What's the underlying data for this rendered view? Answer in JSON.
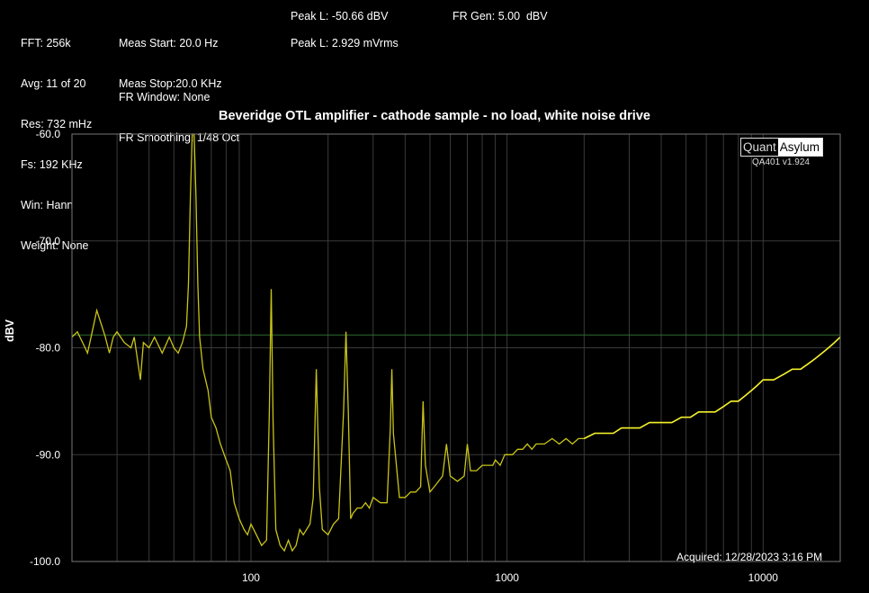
{
  "header": {
    "col1": [
      "FFT: 256k",
      "Avg: 11 of 20",
      "Res: 732 mHz",
      "Fs: 192 KHz",
      "Win: Hann",
      "Weight: None"
    ],
    "col2a": [
      "Meas Start: 20.0 Hz",
      "Meas Stop:20.0 KHz"
    ],
    "col2b": [
      "FR Window: None",
      "FR Smoothing: 1/48 Oct"
    ],
    "peak1": "Peak L: -50.66 dBV",
    "peak2": "Peak L: 2.929 mVrms",
    "frgen": "FR Gen: 5.00  dBV"
  },
  "logo": {
    "left": "Quant",
    "right": "Asylum",
    "version": "QA401 v1.924"
  },
  "acquired": "Acquired: 12/28/2023  3:16 PM",
  "chart_data": {
    "type": "line",
    "title": "Beveridge OTL amplifier - cathode sample - no load, white noise drive",
    "ylabel": "dBV",
    "xlabel": "",
    "x_scale": "log",
    "xlim": [
      20,
      20000
    ],
    "ylim": [
      -100,
      -60
    ],
    "yticks": [
      -60,
      -70,
      -80,
      -90,
      -100
    ],
    "ytick_labels": [
      "-60.0",
      "-70.0",
      "-80.0",
      "-90.0",
      "-100.0"
    ],
    "xticks": [
      100,
      1000,
      10000
    ],
    "xtick_labels": [
      "100",
      "1000",
      "10000"
    ],
    "grid": "on",
    "reference_line_y": -78.8,
    "colors": {
      "trace": "#c9c418",
      "trace_bright": "#f2ee2a",
      "grid": "#3a3a3a",
      "ref": "#2f6b2f"
    },
    "series": [
      {
        "x": [
          20,
          21,
          22,
          23,
          24,
          25,
          27,
          28,
          29,
          30,
          32,
          34,
          35,
          37,
          38,
          40,
          42,
          45,
          48,
          50,
          52,
          54,
          56,
          57,
          58,
          59,
          60,
          61,
          62,
          63,
          65,
          68,
          70,
          73,
          76,
          80,
          83,
          86,
          90,
          94,
          97,
          100,
          105,
          110,
          115,
          118,
          120,
          122,
          125,
          130,
          135,
          140,
          145,
          150,
          155,
          160,
          170,
          175,
          180,
          185,
          190,
          200,
          210,
          220,
          230,
          235,
          240,
          245,
          250,
          260,
          270,
          280,
          290,
          300,
          320,
          340,
          350,
          355,
          360,
          380,
          400,
          420,
          440,
          460,
          470,
          480,
          500,
          520,
          560,
          580,
          600,
          640,
          680,
          700,
          720,
          760,
          800,
          840,
          880,
          900,
          940,
          980,
          1000,
          1050,
          1100,
          1150,
          1200,
          1250,
          1300,
          1400,
          1500,
          1600,
          1700,
          1800,
          1900,
          2000,
          2200,
          2400,
          2600,
          2800,
          3000,
          3300,
          3600,
          4000,
          4400,
          4800,
          5200,
          5600,
          6000,
          6500,
          7000,
          7500,
          8000,
          8500,
          9000,
          9500,
          10000,
          11000,
          12000,
          13000,
          14000,
          15000,
          16000,
          17000,
          18000,
          19000,
          20000
        ],
        "y": [
          -79,
          -78.5,
          -79.5,
          -80.5,
          -78.5,
          -76.5,
          -79.0,
          -80.5,
          -79.0,
          -78.5,
          -79.5,
          -80.0,
          -79.0,
          -83.0,
          -79.5,
          -80.0,
          -79.0,
          -80.5,
          -79.0,
          -80.0,
          -80.5,
          -79.5,
          -78.0,
          -74.0,
          -66.0,
          -60.0,
          -60.0,
          -66.0,
          -74.0,
          -79.0,
          -82.0,
          -84.0,
          -86.5,
          -87.5,
          -89.0,
          -90.5,
          -91.5,
          -94.5,
          -96.0,
          -97.0,
          -97.5,
          -96.5,
          -97.5,
          -98.5,
          -98.0,
          -86.0,
          -74.5,
          -87.0,
          -97.0,
          -98.5,
          -99.0,
          -98.0,
          -99.0,
          -98.5,
          -97.0,
          -97.5,
          -96.5,
          -94.0,
          -82.0,
          -93.0,
          -97.0,
          -97.5,
          -96.5,
          -96.0,
          -86.0,
          -78.5,
          -86.0,
          -96.0,
          -95.5,
          -95.0,
          -95.0,
          -94.5,
          -95.0,
          -94.0,
          -94.5,
          -94.5,
          -87.5,
          -82.0,
          -88.0,
          -94.0,
          -94.0,
          -93.5,
          -93.5,
          -93.0,
          -85.0,
          -91.0,
          -93.5,
          -93.0,
          -92.0,
          -89.0,
          -92.0,
          -92.5,
          -92.0,
          -89.0,
          -91.5,
          -91.5,
          -91.0,
          -91.0,
          -91.0,
          -90.5,
          -91.0,
          -90.0,
          -90.0,
          -90.0,
          -89.5,
          -89.5,
          -89.0,
          -89.5,
          -89.0,
          -89.0,
          -88.5,
          -89.0,
          -88.5,
          -89.0,
          -88.5,
          -88.5,
          -88.0,
          -88.0,
          -88.0,
          -87.5,
          -87.5,
          -87.5,
          -87.0,
          -87.0,
          -87.0,
          -86.5,
          -86.5,
          -86.0,
          -86.0,
          -86.0,
          -85.5,
          -85.0,
          -85.0,
          -84.5,
          -84.0,
          -83.5,
          -83.0,
          -83.0,
          -82.5,
          -82.0,
          -82.0,
          -81.5,
          -81.0,
          -80.5,
          -80.0,
          -79.5,
          -79.0
        ]
      }
    ]
  }
}
